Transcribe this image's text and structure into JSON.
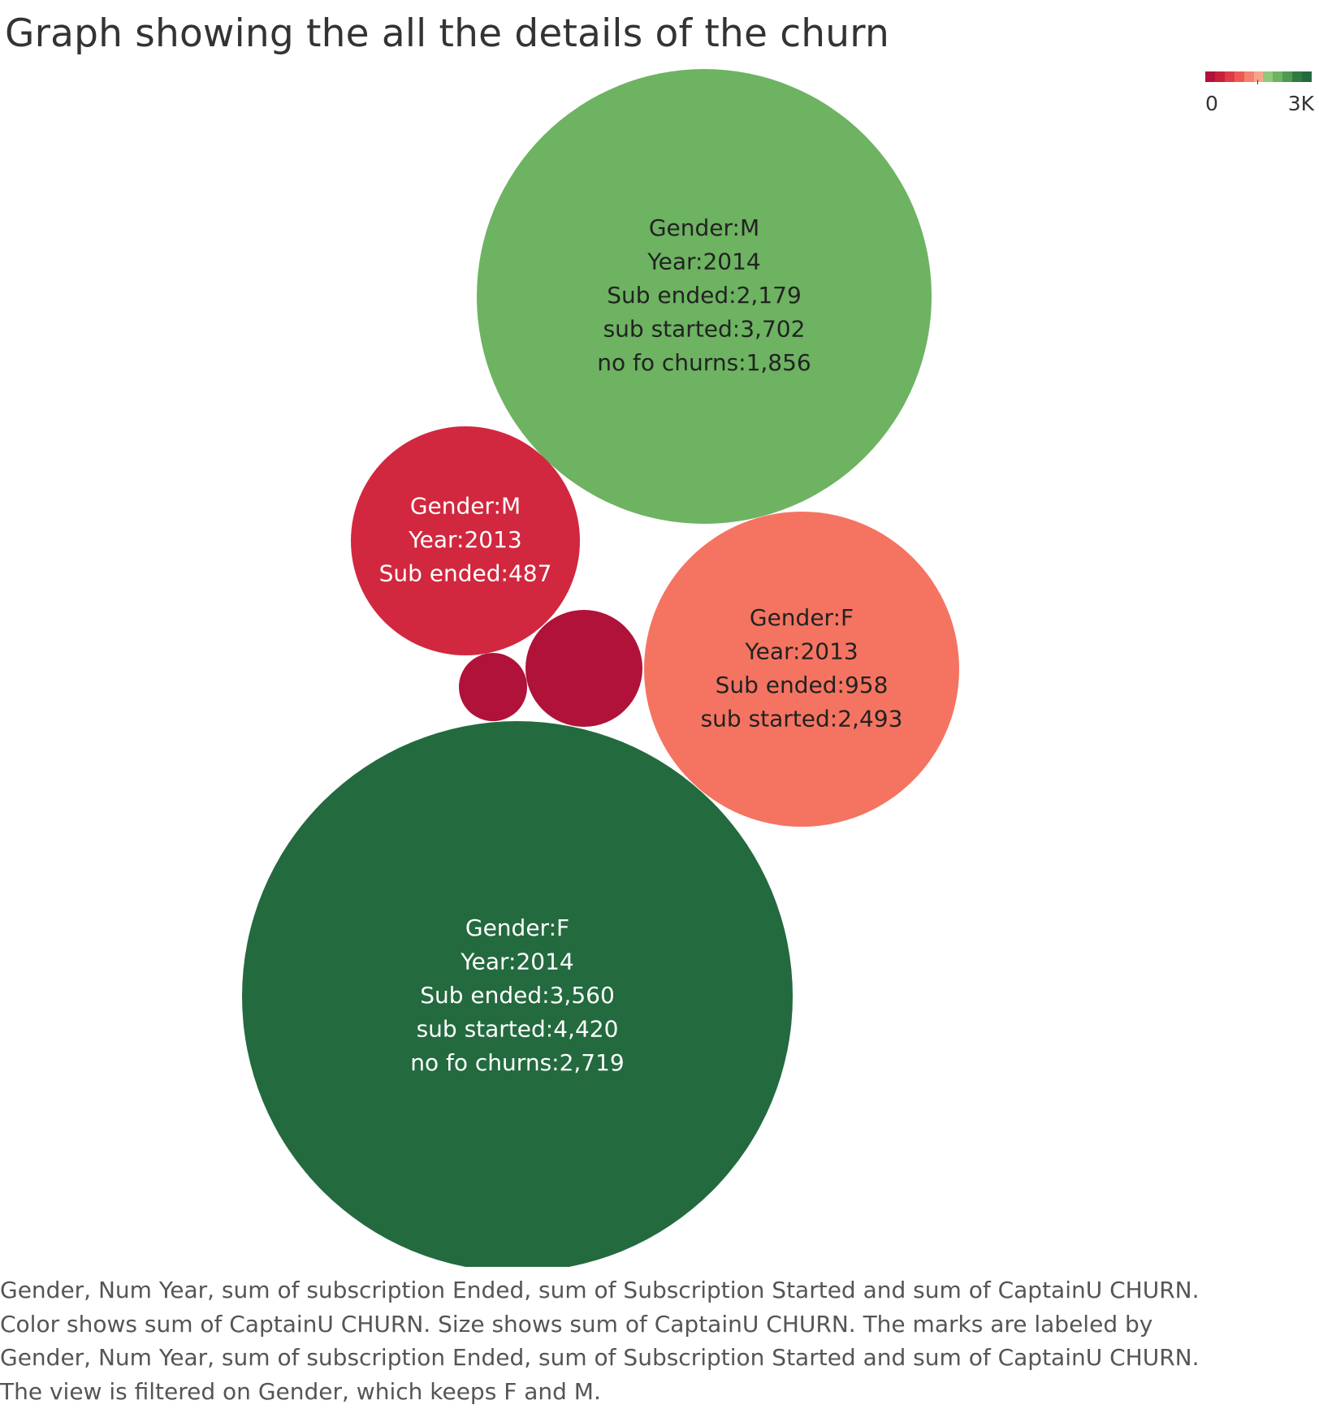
{
  "title": "Graph showing the all the details of the churn",
  "legend": {
    "min_label": "0",
    "max_label": "3K",
    "colors": [
      "#b0123a",
      "#c8203c",
      "#dd3c47",
      "#ee5a53",
      "#f4826d",
      "#f6a58b",
      "#8fc97a",
      "#6db361",
      "#4e9a50",
      "#337a42",
      "#236a3f"
    ]
  },
  "chart_data": {
    "type": "bubble",
    "color_measure": "sum of CaptainU CHURN",
    "size_measure": "sum of CaptainU CHURN",
    "color_range": [
      0,
      3000
    ],
    "bubbles": [
      {
        "gender": "M",
        "year": 2014,
        "sub_ended": 2179,
        "sub_started": 3702,
        "churns": 1856,
        "color": "#6db361",
        "text_color": "#222222",
        "labels": [
          "Gender:M",
          "Year:2014",
          "Sub ended:2,179",
          "sub started:3,702",
          "no fo churns:1,856"
        ]
      },
      {
        "gender": "M",
        "year": 2013,
        "sub_ended": 487,
        "color": "#d1283f",
        "text_color": "#ffffff",
        "labels": [
          "Gender:M",
          "Year:2013",
          "Sub ended:487"
        ]
      },
      {
        "gender": "F",
        "year": 2013,
        "sub_ended": 958,
        "sub_started": 2493,
        "color": "#f47461",
        "text_color": "#222222",
        "labels": [
          "Gender:F",
          "Year:2013",
          "Sub ended:958",
          "sub started:2,493"
        ]
      },
      {
        "gender": "F",
        "year": 2014,
        "sub_ended": 3560,
        "sub_started": 4420,
        "churns": 2719,
        "color": "#236a3f",
        "text_color": "#ffffff",
        "labels": [
          "Gender:F",
          "Year:2014",
          "Sub ended:3,560",
          "sub started:4,420",
          "no fo churns:2,719"
        ]
      },
      {
        "color": "#b0123a",
        "text_color": "#ffffff",
        "labels": []
      },
      {
        "color": "#b0123a",
        "text_color": "#ffffff",
        "labels": []
      }
    ]
  },
  "caption": [
    "Gender, Num Year, sum of subscription Ended, sum of Subscription Started and sum of CaptainU CHURN.",
    "Color shows sum of CaptainU CHURN.  Size shows sum of CaptainU CHURN.  The marks are labeled by",
    "Gender, Num Year, sum of subscription Ended, sum of Subscription Started and sum of CaptainU CHURN.",
    "The view is filtered on Gender, which keeps F and M."
  ]
}
